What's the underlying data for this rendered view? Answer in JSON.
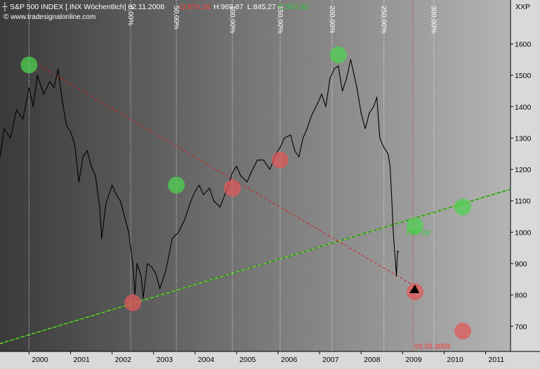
{
  "header": {
    "title": "S&P 500 INDEX [.INX Wöchentlich] 02.11.2008",
    "open": "O:874,28",
    "high": "H:969,87",
    "low": "L:845,27",
    "close": "C:937,65",
    "source": "© www.tradesignalonline.com",
    "currency": "XXP"
  },
  "colors": {
    "background_dark": "#3a3a3a",
    "background_light": "#b4b4b4",
    "price_line": "#000000",
    "support_line": "#1a9a1a",
    "support_dash": "#e8e84a",
    "target_line": "#d42020",
    "green_marker": "#4fd14f",
    "red_marker": "#e05a5a",
    "open_color": "#ff4040",
    "close_color": "#2ecc2e",
    "axis_text": "#000000",
    "vertical_label_text": "#ffffff"
  },
  "chart_data": {
    "type": "line",
    "title": "S&P 500 INDEX [.INX Wöchentlich]",
    "xlim": [
      1999.3,
      2011.6
    ],
    "ylim": [
      620,
      1740
    ],
    "yticks": [
      700,
      800,
      900,
      1000,
      1100,
      1200,
      1300,
      1400,
      1500,
      1600
    ],
    "xtick_labels": [
      {
        "x": 2000.0,
        "label": "2000"
      },
      {
        "x": 2001.0,
        "label": "2001"
      },
      {
        "x": 2002.0,
        "label": "2002"
      },
      {
        "x": 2003.0,
        "label": "2003"
      },
      {
        "x": 2004.0,
        "label": "2004"
      },
      {
        "x": 2005.0,
        "label": "2005"
      },
      {
        "x": 2006.0,
        "label": "2006"
      },
      {
        "x": 2007.0,
        "label": "2007"
      },
      {
        "x": 2008.0,
        "label": "2008"
      },
      {
        "x": 2009.0,
        "label": "2009"
      },
      {
        "x": 2010.0,
        "label": "2010"
      },
      {
        "x": 2011.0,
        "label": "2011"
      }
    ],
    "series": [
      {
        "values": [
          [
            1999.3,
            1240
          ],
          [
            1999.4,
            1330
          ],
          [
            1999.55,
            1300
          ],
          [
            1999.7,
            1390
          ],
          [
            1999.85,
            1360
          ],
          [
            2000.0,
            1460
          ],
          [
            2000.1,
            1400
          ],
          [
            2000.2,
            1500
          ],
          [
            2000.35,
            1440
          ],
          [
            2000.5,
            1480
          ],
          [
            2000.6,
            1460
          ],
          [
            2000.7,
            1520
          ],
          [
            2000.8,
            1420
          ],
          [
            2000.9,
            1340
          ],
          [
            2001.0,
            1320
          ],
          [
            2001.1,
            1280
          ],
          [
            2001.2,
            1160
          ],
          [
            2001.3,
            1240
          ],
          [
            2001.4,
            1260
          ],
          [
            2001.5,
            1210
          ],
          [
            2001.6,
            1180
          ],
          [
            2001.7,
            1080
          ],
          [
            2001.75,
            980
          ],
          [
            2001.85,
            1090
          ],
          [
            2002.0,
            1150
          ],
          [
            2002.1,
            1120
          ],
          [
            2002.2,
            1100
          ],
          [
            2002.3,
            1050
          ],
          [
            2002.4,
            1000
          ],
          [
            2002.5,
            900
          ],
          [
            2002.55,
            800
          ],
          [
            2002.6,
            900
          ],
          [
            2002.7,
            860
          ],
          [
            2002.75,
            790
          ],
          [
            2002.85,
            900
          ],
          [
            2002.95,
            890
          ],
          [
            2003.05,
            870
          ],
          [
            2003.15,
            820
          ],
          [
            2003.3,
            880
          ],
          [
            2003.45,
            980
          ],
          [
            2003.6,
            1000
          ],
          [
            2003.75,
            1040
          ],
          [
            2003.9,
            1100
          ],
          [
            2004.0,
            1130
          ],
          [
            2004.1,
            1150
          ],
          [
            2004.2,
            1120
          ],
          [
            2004.35,
            1140
          ],
          [
            2004.45,
            1100
          ],
          [
            2004.6,
            1080
          ],
          [
            2004.75,
            1130
          ],
          [
            2004.9,
            1190
          ],
          [
            2005.0,
            1210
          ],
          [
            2005.1,
            1180
          ],
          [
            2005.25,
            1160
          ],
          [
            2005.35,
            1190
          ],
          [
            2005.5,
            1230
          ],
          [
            2005.65,
            1230
          ],
          [
            2005.8,
            1200
          ],
          [
            2005.95,
            1250
          ],
          [
            2006.05,
            1270
          ],
          [
            2006.15,
            1300
          ],
          [
            2006.3,
            1310
          ],
          [
            2006.4,
            1260
          ],
          [
            2006.5,
            1240
          ],
          [
            2006.6,
            1300
          ],
          [
            2006.7,
            1330
          ],
          [
            2006.8,
            1370
          ],
          [
            2006.95,
            1410
          ],
          [
            2007.05,
            1440
          ],
          [
            2007.15,
            1400
          ],
          [
            2007.25,
            1490
          ],
          [
            2007.35,
            1520
          ],
          [
            2007.45,
            1530
          ],
          [
            2007.55,
            1450
          ],
          [
            2007.65,
            1490
          ],
          [
            2007.75,
            1550
          ],
          [
            2007.8,
            1520
          ],
          [
            2007.9,
            1460
          ],
          [
            2008.0,
            1380
          ],
          [
            2008.1,
            1330
          ],
          [
            2008.2,
            1380
          ],
          [
            2008.3,
            1400
          ],
          [
            2008.38,
            1430
          ],
          [
            2008.45,
            1300
          ],
          [
            2008.55,
            1270
          ],
          [
            2008.65,
            1250
          ],
          [
            2008.7,
            1210
          ],
          [
            2008.74,
            1100
          ],
          [
            2008.78,
            990
          ],
          [
            2008.82,
            920
          ],
          [
            2008.85,
            860
          ],
          [
            2008.88,
            940
          ],
          [
            2008.9,
            937
          ]
        ]
      }
    ],
    "support_line": {
      "from": [
        1999.3,
        645
      ],
      "to": [
        2011.6,
        1137
      ]
    },
    "target_line": {
      "from": [
        2000.25,
        1530
      ],
      "to": [
        2009.4,
        820
      ]
    },
    "target_date_line": {
      "x": 2009.25,
      "label": "01.02.2009"
    },
    "percent_lines": [
      {
        "x": 2000.0,
        "label": ""
      },
      {
        "x": 2002.45,
        "label": "0,00%"
      },
      {
        "x": 2003.55,
        "label": "50,00%"
      },
      {
        "x": 2004.9,
        "label": "100,00%"
      },
      {
        "x": 2006.05,
        "label": "150,00%"
      },
      {
        "x": 2007.3,
        "label": "200,00%"
      },
      {
        "x": 2008.55,
        "label": "250,00%"
      },
      {
        "x": 2009.75,
        "label": "300,00%"
      }
    ],
    "green_markers": [
      [
        2000.0,
        1533
      ],
      [
        2003.55,
        1150
      ],
      [
        2007.45,
        1565
      ],
      [
        2009.3,
        1020
      ],
      [
        2010.45,
        1080
      ]
    ],
    "red_markers": [
      [
        2002.5,
        775
      ],
      [
        2004.9,
        1140
      ],
      [
        2006.05,
        1230
      ],
      [
        2009.3,
        810
      ],
      [
        2010.45,
        685
      ]
    ],
    "price_annotation": {
      "x": 2009.3,
      "y": 1000,
      "label": "1007,00"
    },
    "arrow_point": [
      2009.3,
      815
    ],
    "ylabel": "",
    "xlabel": ""
  }
}
